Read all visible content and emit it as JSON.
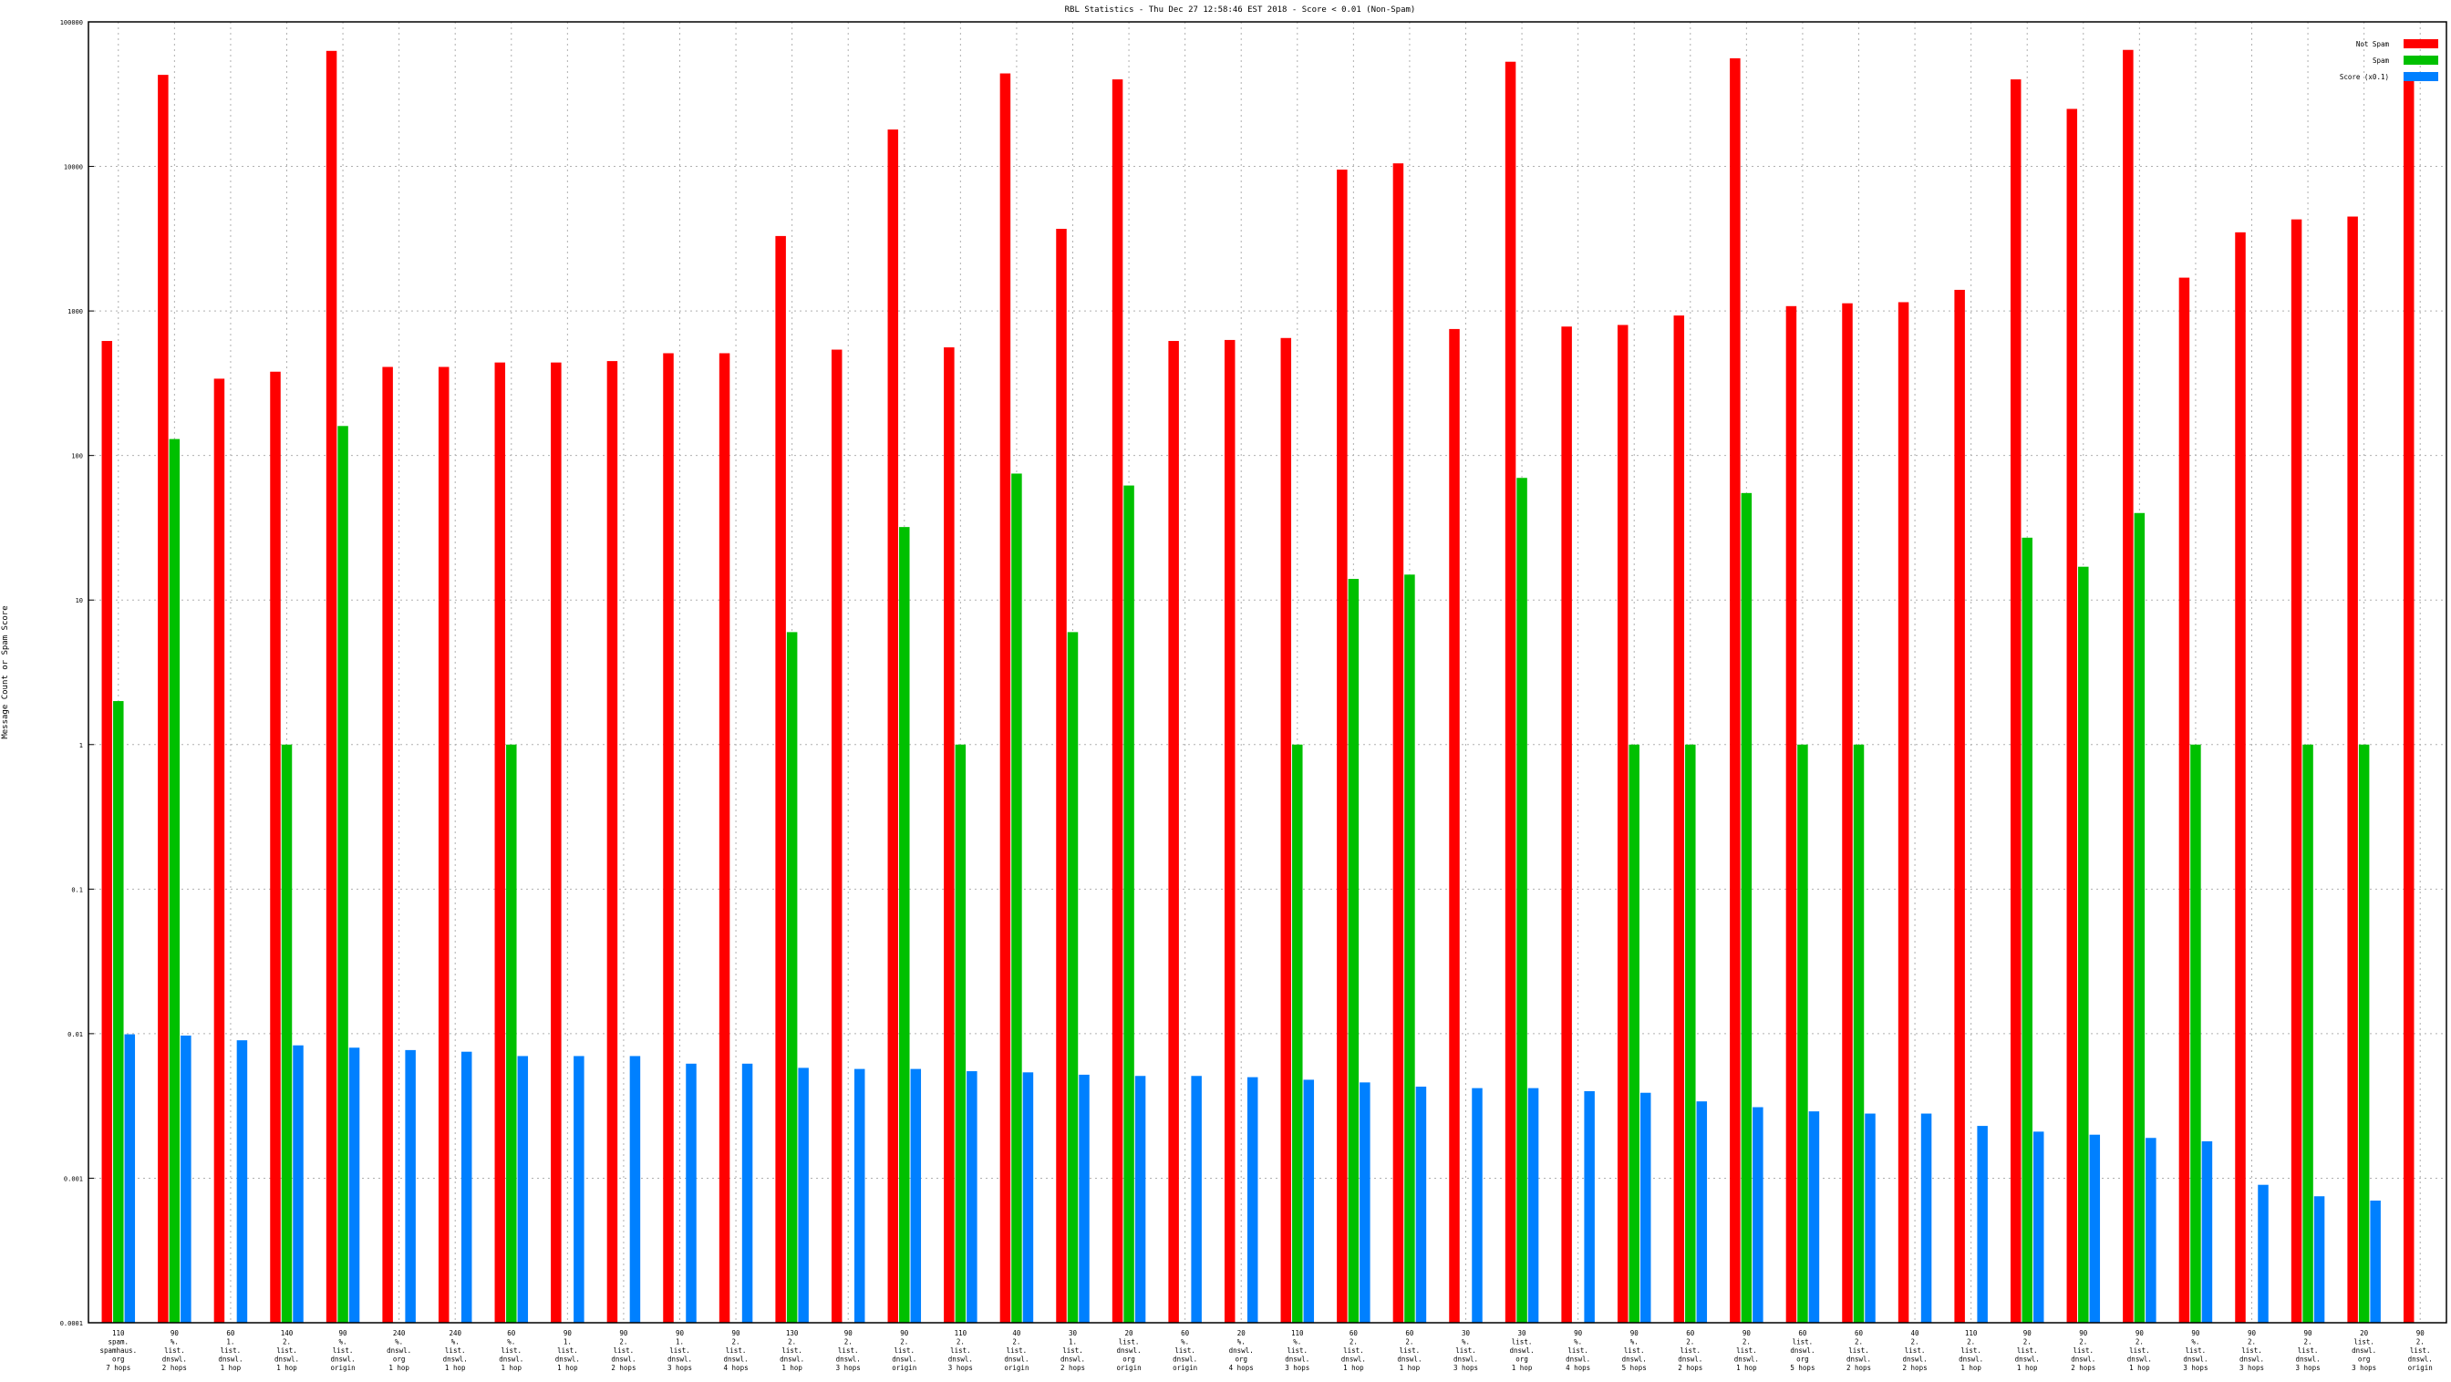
{
  "chart_data": {
    "type": "bar",
    "title": "RBL Statistics - Thu Dec 27 12:58:46 EST 2018 - Score < 0.01 (Non-Spam)",
    "xlabel": "",
    "ylabel": "Message Count or Spam Score",
    "yscale": "log",
    "ylim": [
      0.0001,
      100000
    ],
    "y_ticks": [
      {
        "value": 0.0001,
        "label": "0.0001"
      },
      {
        "value": 0.001,
        "label": "0.001"
      },
      {
        "value": 0.01,
        "label": "0.01"
      },
      {
        "value": 0.1,
        "label": "0.1"
      },
      {
        "value": 1,
        "label": "1"
      },
      {
        "value": 10,
        "label": "10"
      },
      {
        "value": 100,
        "label": "100"
      },
      {
        "value": 1000,
        "label": "1000"
      },
      {
        "value": 10000,
        "label": "10000"
      },
      {
        "value": 100000,
        "label": "100000"
      }
    ],
    "grid": true,
    "legend_position": "top-right",
    "categories": [
      [
        "110",
        "spam.",
        "spamhaus.",
        "org",
        "7 hops"
      ],
      [
        "90",
        "%.",
        "list.",
        "dnswl.",
        "2 hops"
      ],
      [
        "60",
        "1.",
        "list.",
        "dnswl.",
        "1 hop"
      ],
      [
        "140",
        "2.",
        "list.",
        "dnswl.",
        "1 hop"
      ],
      [
        "90",
        "%.",
        "list.",
        "dnswl.",
        "origin"
      ],
      [
        "240",
        "%.",
        "dnswl.",
        "org",
        "1 hop"
      ],
      [
        "240",
        "%.",
        "list.",
        "dnswl.",
        "1 hop"
      ],
      [
        "60",
        "%.",
        "list.",
        "dnswl.",
        "1 hop"
      ],
      [
        "90",
        "1.",
        "list.",
        "dnswl.",
        "1 hop"
      ],
      [
        "90",
        "2.",
        "list.",
        "dnswl.",
        "2 hops"
      ],
      [
        "90",
        "1.",
        "list.",
        "dnswl.",
        "3 hops"
      ],
      [
        "90",
        "2.",
        "list.",
        "dnswl.",
        "4 hops"
      ],
      [
        "130",
        "2.",
        "list.",
        "dnswl.",
        "1 hop"
      ],
      [
        "90",
        "2.",
        "list.",
        "dnswl.",
        "3 hops"
      ],
      [
        "90",
        "2.",
        "list.",
        "dnswl.",
        "origin"
      ],
      [
        "110",
        "2.",
        "list.",
        "dnswl.",
        "3 hops"
      ],
      [
        "40",
        "2.",
        "list.",
        "dnswl.",
        "origin"
      ],
      [
        "30",
        "1.",
        "list.",
        "dnswl.",
        "2 hops"
      ],
      [
        "20",
        "list.",
        "dnswl.",
        "org",
        "origin"
      ],
      [
        "60",
        "%.",
        "list.",
        "dnswl.",
        "origin"
      ],
      [
        "20",
        "%.",
        "dnswl.",
        "org",
        "4 hops"
      ],
      [
        "110",
        "%.",
        "list.",
        "dnswl.",
        "3 hops"
      ],
      [
        "60",
        "2.",
        "list.",
        "dnswl.",
        "1 hop"
      ],
      [
        "60",
        "2.",
        "list.",
        "dnswl.",
        "1 hop"
      ],
      [
        "30",
        "%.",
        "list.",
        "dnswl.",
        "3 hops"
      ],
      [
        "30",
        "list.",
        "dnswl.",
        "org",
        "1 hop"
      ],
      [
        "90",
        "%.",
        "list.",
        "dnswl.",
        "4 hops"
      ],
      [
        "90",
        "%.",
        "list.",
        "dnswl.",
        "5 hops"
      ],
      [
        "60",
        "2.",
        "list.",
        "dnswl.",
        "2 hops"
      ],
      [
        "90",
        "2.",
        "list.",
        "dnswl.",
        "1 hop"
      ],
      [
        "60",
        "list.",
        "dnswl.",
        "org",
        "5 hops"
      ],
      [
        "60",
        "2.",
        "list.",
        "dnswl.",
        "2 hops"
      ],
      [
        "40",
        "2.",
        "list.",
        "dnswl.",
        "2 hops"
      ],
      [
        "110",
        "2.",
        "list.",
        "dnswl.",
        "1 hop"
      ],
      [
        "90",
        "2.",
        "list.",
        "dnswl.",
        "1 hop"
      ],
      [
        "90",
        "2.",
        "list.",
        "dnswl.",
        "2 hops"
      ],
      [
        "90",
        "2.",
        "list.",
        "dnswl.",
        "1 hop"
      ],
      [
        "90",
        "%.",
        "list.",
        "dnswl.",
        "3 hops"
      ],
      [
        "90",
        "2.",
        "list.",
        "dnswl.",
        "3 hops"
      ],
      [
        "90",
        "2.",
        "list.",
        "dnswl.",
        "3 hops"
      ],
      [
        "20",
        "list.",
        "dnswl.",
        "org",
        "3 hops"
      ],
      [
        "90",
        "2.",
        "list.",
        "dnswl.",
        "origin"
      ]
    ],
    "series": [
      {
        "name": "Not Spam",
        "color": "#ff0000",
        "values": [
          620,
          43000,
          340,
          380,
          63000,
          410,
          410,
          440,
          440,
          450,
          510,
          510,
          3300,
          540,
          18000,
          560,
          44000,
          3700,
          40000,
          620,
          630,
          650,
          9500,
          10500,
          750,
          53000,
          780,
          800,
          930,
          56000,
          1080,
          1130,
          1150,
          1400,
          40000,
          25000,
          64000,
          1700,
          3500,
          4300,
          4500,
          45000
        ]
      },
      {
        "name": "Spam",
        "color": "#00c000",
        "values": [
          2,
          130,
          null,
          1,
          160,
          null,
          null,
          1,
          null,
          null,
          null,
          null,
          6,
          null,
          32,
          1,
          75,
          6,
          62,
          null,
          null,
          1,
          14,
          15,
          null,
          70,
          null,
          1,
          1,
          55,
          1,
          1,
          null,
          null,
          27,
          17,
          40,
          1,
          null,
          1,
          1,
          null
        ]
      },
      {
        "name": "Score (x0.1)",
        "color": "#0080ff",
        "values": [
          0.0099,
          0.0097,
          0.009,
          0.0083,
          0.008,
          0.0077,
          0.0075,
          0.007,
          0.007,
          0.007,
          0.0062,
          0.0062,
          0.0058,
          0.0057,
          0.0057,
          0.0055,
          0.0054,
          0.0052,
          0.0051,
          0.0051,
          0.005,
          0.0048,
          0.0046,
          0.0043,
          0.0042,
          0.0042,
          0.004,
          0.0039,
          0.0034,
          0.0031,
          0.0029,
          0.0028,
          0.0028,
          0.0023,
          0.0021,
          0.002,
          0.0019,
          0.0018,
          0.0009,
          0.00075,
          0.0007,
          null
        ]
      }
    ]
  }
}
